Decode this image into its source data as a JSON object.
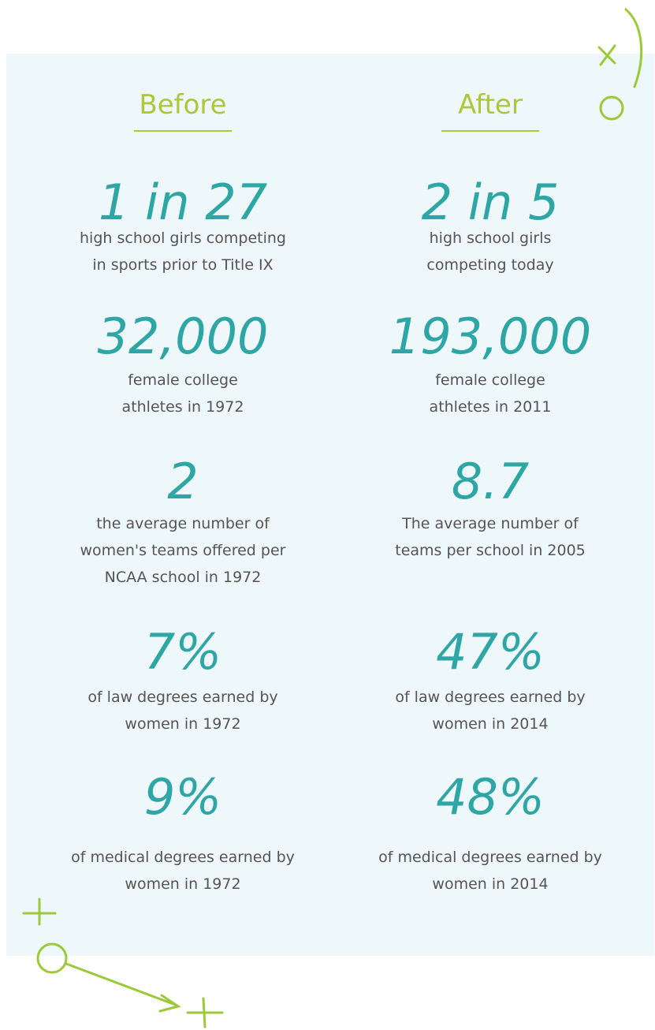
{
  "columns": [
    {
      "heading": "Before",
      "items": [
        {
          "big": "1 in 27",
          "caption": [
            "high school girls competing",
            "in sports prior to Title IX"
          ]
        },
        {
          "big": "32,000",
          "caption": [
            "female college",
            "athletes in 1972"
          ]
        },
        {
          "big": "2",
          "caption": [
            "the average number of",
            "women's teams offered per",
            "NCAA school in 1972"
          ]
        },
        {
          "big": "7%",
          "caption": [
            "of law degrees earned by",
            "women in 1972"
          ]
        },
        {
          "big": "9%",
          "caption": [
            "of medical degrees earned by",
            "women in 1972"
          ]
        }
      ]
    },
    {
      "heading": "After",
      "items": [
        {
          "big": "2 in 5",
          "caption": [
            "high school girls",
            "competing today"
          ]
        },
        {
          "big": "193,000",
          "caption": [
            "female college",
            "athletes in 2011"
          ]
        },
        {
          "big": "8.7",
          "caption": [
            "The average number of",
            "teams per school in 2005"
          ]
        },
        {
          "big": "47%",
          "caption": [
            "of law degrees earned by",
            "women in 2014"
          ]
        },
        {
          "big": "48%",
          "caption": [
            "of medical degrees earned by",
            "women in 2014"
          ]
        }
      ]
    }
  ]
}
